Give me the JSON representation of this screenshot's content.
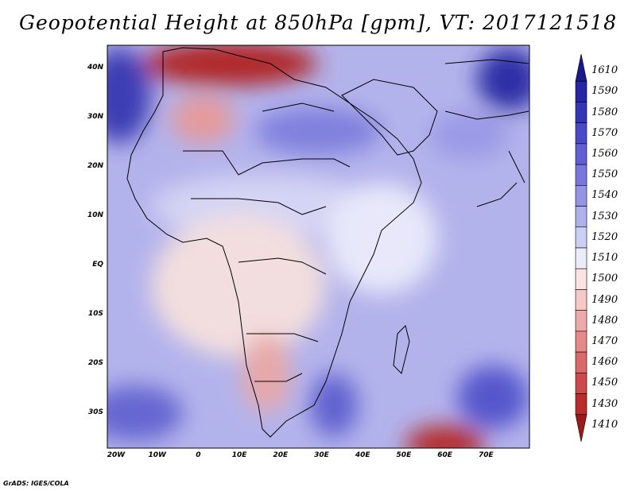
{
  "title": "Geopotential Height at 850hPa [gpm], VT: 2017121518",
  "footer": "GrADS: IGES/COLA",
  "lat_labels": [
    "40N",
    "30N",
    "20N",
    "10N",
    "EQ",
    "10S",
    "20S",
    "30S"
  ],
  "lon_labels": [
    "20W",
    "10W",
    "0",
    "10E",
    "20E",
    "30E",
    "40E",
    "50E",
    "60E",
    "70E"
  ],
  "colorbar": {
    "levels": [
      "1610",
      "1590",
      "1580",
      "1570",
      "1560",
      "1550",
      "1540",
      "1530",
      "1520",
      "1510",
      "1500",
      "1490",
      "1480",
      "1470",
      "1460",
      "1450",
      "1430",
      "1410"
    ],
    "colors": [
      "#1a1a8c",
      "#2626a6",
      "#3434b8",
      "#4a4ac8",
      "#6060d4",
      "#7878dc",
      "#9494e4",
      "#b0b0ec",
      "#cccff4",
      "#ebebfa",
      "#fbe3e3",
      "#f6c8c8",
      "#eeaaaa",
      "#e48a8a",
      "#d86a6a",
      "#cc4a4a",
      "#b82c2c",
      "#9c1a1a"
    ]
  }
}
